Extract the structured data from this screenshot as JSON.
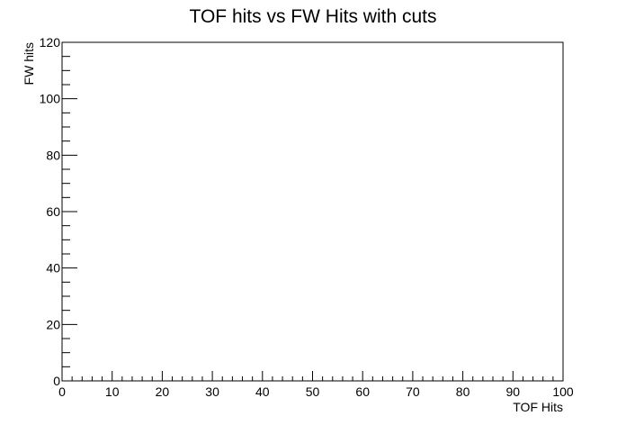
{
  "chart_data": {
    "type": "scatter",
    "title": "TOF hits vs FW Hits with cuts",
    "xlabel": "TOF Hits",
    "ylabel": "FW hits",
    "xlim": [
      0,
      100
    ],
    "ylim": [
      0,
      120
    ],
    "x_major_ticks": [
      0,
      10,
      20,
      30,
      40,
      50,
      60,
      70,
      80,
      90,
      100
    ],
    "y_major_ticks": [
      0,
      20,
      40,
      60,
      80,
      100,
      120
    ],
    "x_minor_step": 2,
    "y_minor_step": 5,
    "grid": false,
    "legend": "none",
    "series": [
      {
        "x": [],
        "y": []
      }
    ]
  }
}
